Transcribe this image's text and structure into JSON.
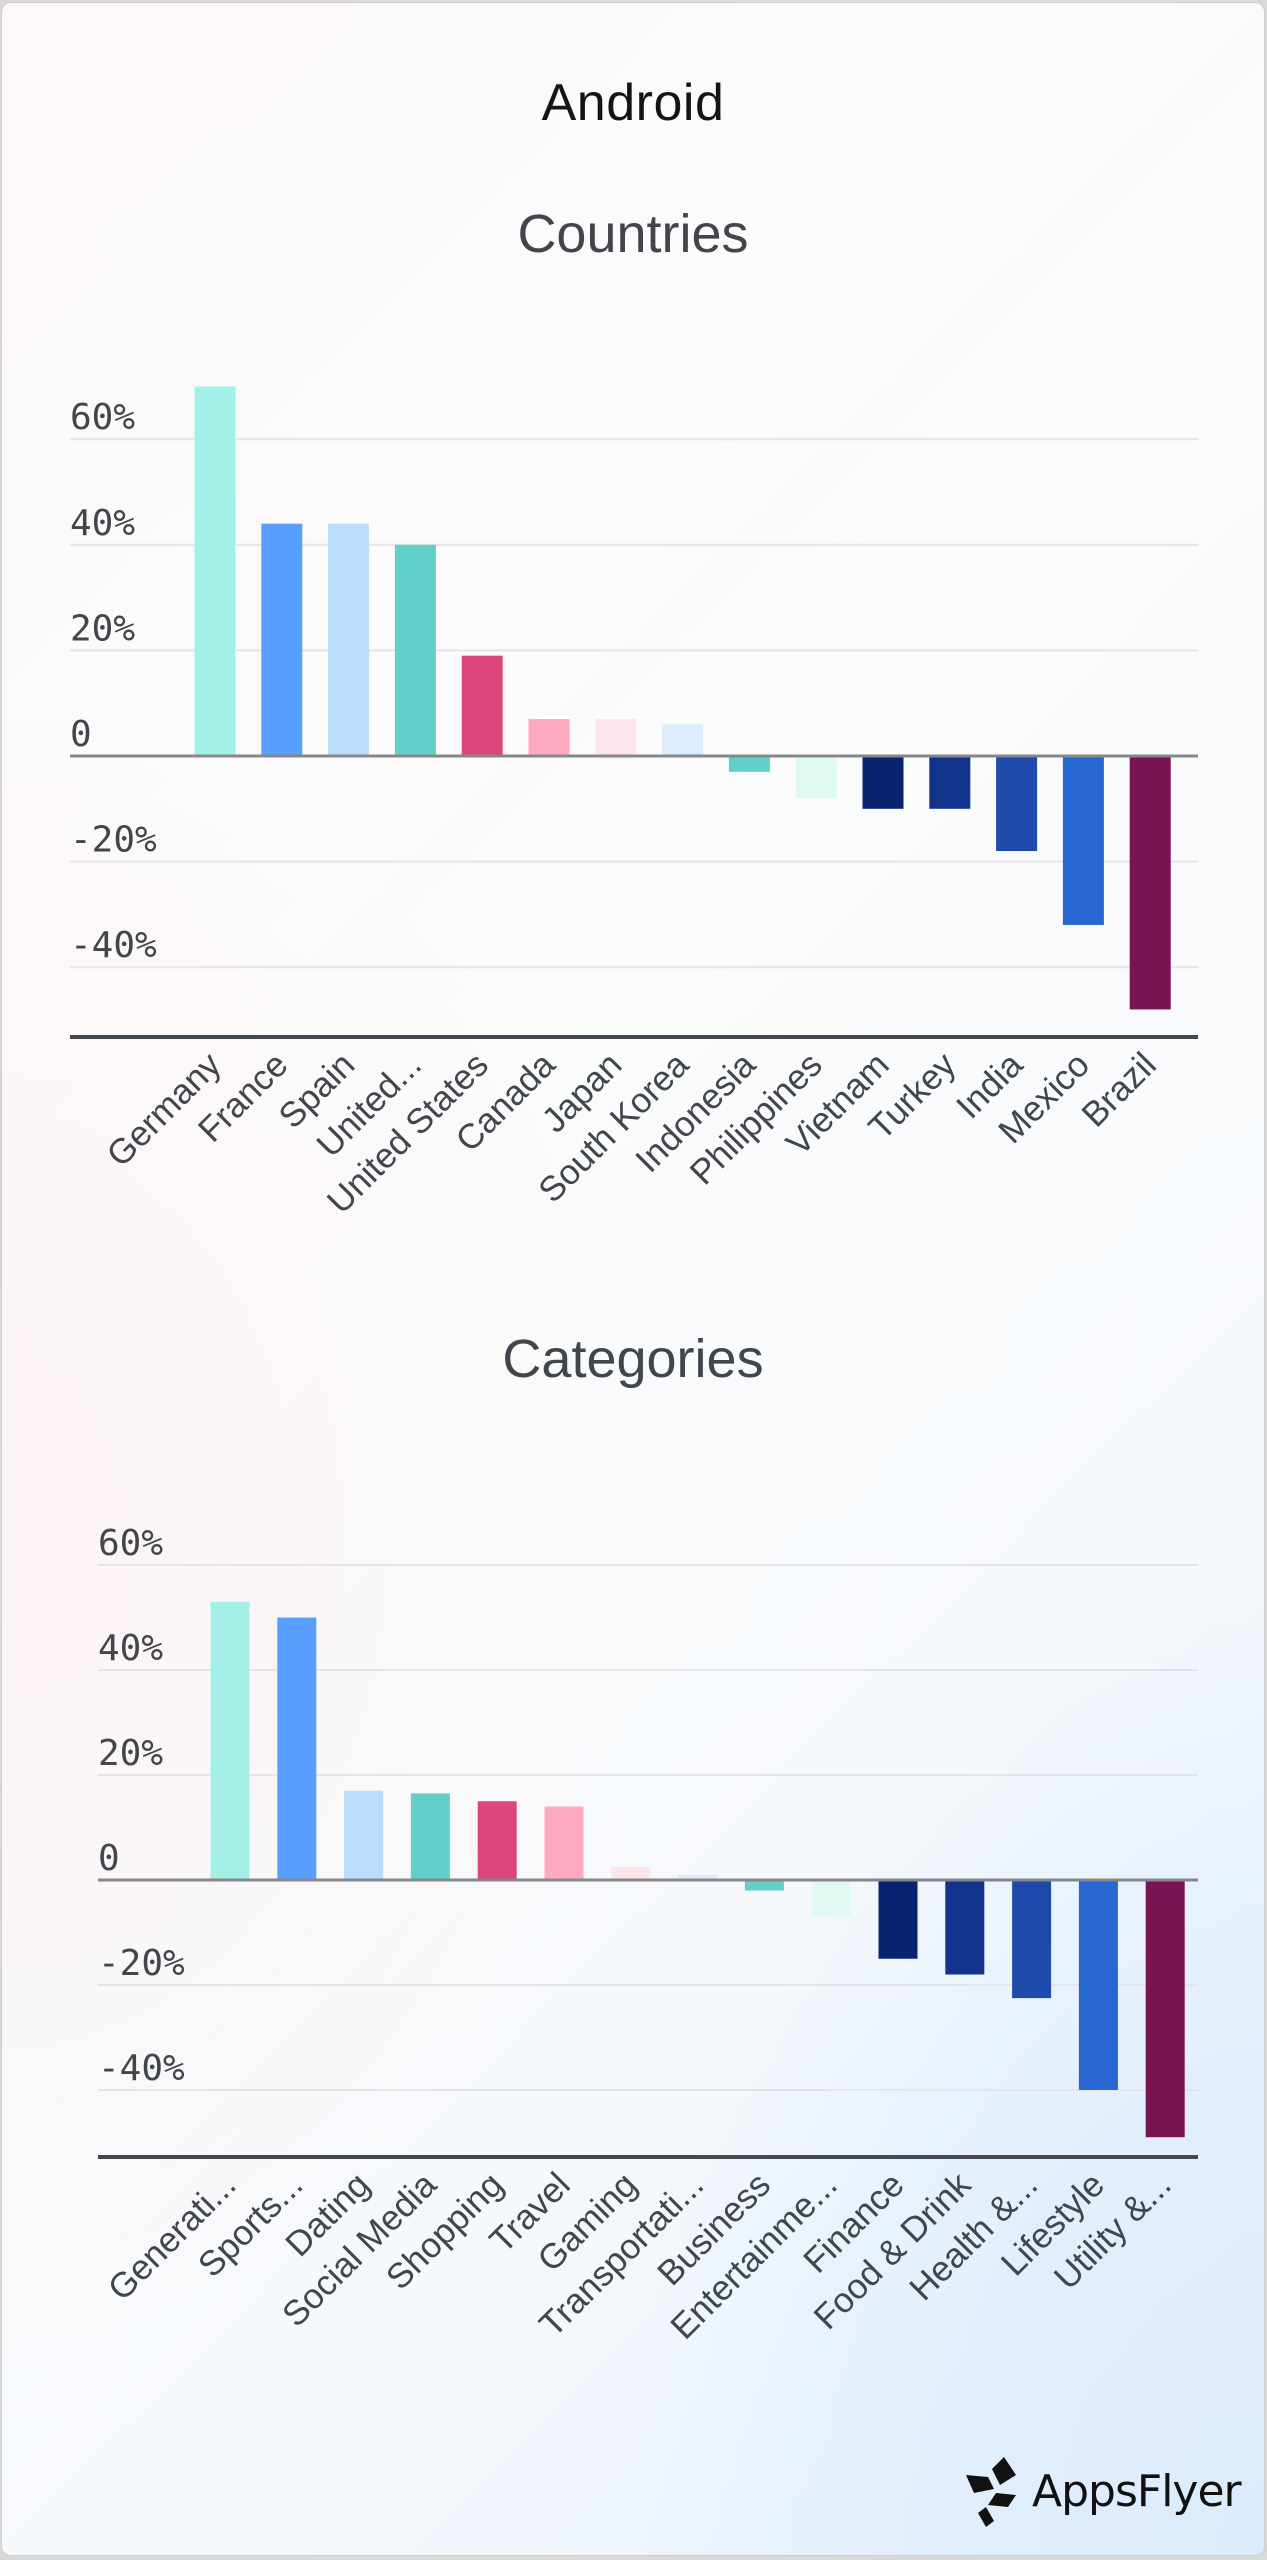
{
  "page": {
    "title": "Android",
    "brand": "AppsFlyer",
    "logo_icon": "appsflyer-logo-icon"
  },
  "colors": {
    "palette": [
      "#a5f0e6",
      "#589ffe",
      "#bbdefd",
      "#62d0ca",
      "#db467c",
      "#fea9bf",
      "#fce6eb",
      "#dcecfd",
      "#62d0ca",
      "#e0faf3",
      "#0a2370",
      "#11338c",
      "#1d4aab",
      "#2767d1",
      "#7a1354"
    ],
    "gridline": "#e6e4e6",
    "zero_line": "#86878a",
    "axis_line": "#45484f",
    "text": "#41454c"
  },
  "chart_data": [
    {
      "type": "bar",
      "title": "Countries",
      "xlabel": "",
      "ylabel": "",
      "ylim": [
        -53,
        75
      ],
      "yticks": [
        -40,
        -20,
        0,
        20,
        40,
        60
      ],
      "ytick_labels": [
        "-40%",
        "-20%",
        "0",
        "20%",
        "40%",
        "60%"
      ],
      "grid": true,
      "legend": "none",
      "categories": [
        "Germany",
        "France",
        "Spain",
        "United...",
        "United States",
        "Canada",
        "Japan",
        "South Korea",
        "Indonesia",
        "Philippines",
        "Vietnam",
        "Turkey",
        "India",
        "Mexico",
        "Brazil"
      ],
      "values": [
        70,
        44,
        44,
        40,
        19,
        7,
        7,
        6,
        -3,
        -8,
        -10,
        -10,
        -18,
        -32,
        -48
      ]
    },
    {
      "type": "bar",
      "title": "Categories",
      "xlabel": "",
      "ylabel": "",
      "ylim": [
        -53,
        65
      ],
      "yticks": [
        -40,
        -20,
        0,
        20,
        40,
        60
      ],
      "ytick_labels": [
        "-40%",
        "-20%",
        "0",
        "20%",
        "40%",
        "60%"
      ],
      "grid": true,
      "legend": "none",
      "categories": [
        "Generati...",
        "Sports...",
        "Dating",
        "Social Media",
        "Shopping",
        "Travel",
        "Gaming",
        "Transportati...",
        "Business",
        "Entertainme...",
        "Finance",
        "Food & Drink",
        "Health &...",
        "Lifestyle",
        "Utility &..."
      ],
      "values": [
        53,
        50,
        17,
        16.5,
        15,
        14,
        2.5,
        1,
        -2,
        -7,
        -15,
        -18,
        -22.5,
        -40,
        -49
      ]
    }
  ]
}
